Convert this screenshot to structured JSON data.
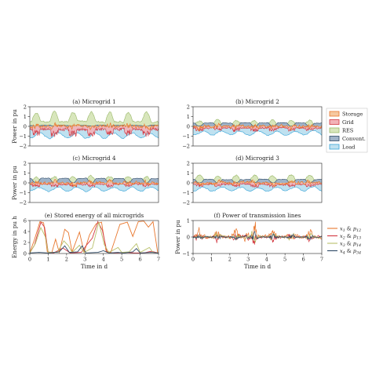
{
  "figure": {
    "background": "#ffffff",
    "colors": {
      "storage_fill": "#f6c8a0",
      "storage_line": "#e8772e",
      "grid_fill": "#f2b3b8",
      "grid_line": "#d2363f",
      "res_fill": "#d8e6bc",
      "res_line": "#9ab86a",
      "conv_fill": "#9fb3c8",
      "conv_line": "#2f4a66",
      "load_fill": "#bfe1f0",
      "load_line": "#39a5d8",
      "x1": "#e8772e",
      "x2": "#d2363f",
      "x3": "#b8c06a",
      "x4": "#2f4a66"
    }
  },
  "chart_data": [
    {
      "id": "a",
      "type": "area",
      "title": "(a) Microgrid 1",
      "ylabel": "Power in pu",
      "xlabel": "",
      "xlim": [
        0,
        7
      ],
      "ylim": [
        -2,
        2
      ],
      "yticks": [
        -2,
        -1,
        0,
        1,
        2
      ],
      "xticks": [],
      "seed": 11,
      "res_base": 1.3,
      "load_base": 1.1,
      "grid_mag": 0.55,
      "conv_mag": 0.1
    },
    {
      "id": "b",
      "type": "area",
      "title": "(b) Microgrid 2",
      "ylabel": "",
      "xlabel": "",
      "xlim": [
        0,
        7
      ],
      "ylim": [
        -2,
        2
      ],
      "yticks": [
        -2,
        -1,
        0,
        1,
        2
      ],
      "xticks": [],
      "seed": 23,
      "res_base": 0.55,
      "load_base": 0.8,
      "grid_mag": 0.25,
      "conv_mag": 0.35
    },
    {
      "id": "c",
      "type": "area",
      "title": "(c) Microgrid 4",
      "ylabel": "Power in pu",
      "xlabel": "",
      "xlim": [
        0,
        7
      ],
      "ylim": [
        -2,
        2
      ],
      "yticks": [
        -2,
        -1,
        0,
        1,
        2
      ],
      "xticks": [],
      "seed": 37,
      "res_base": 0.55,
      "load_base": 0.75,
      "grid_mag": 0.2,
      "conv_mag": 0.45
    },
    {
      "id": "d",
      "type": "area",
      "title": "(d) Microgrid 3",
      "ylabel": "",
      "xlabel": "",
      "xlim": [
        0,
        7
      ],
      "ylim": [
        -2,
        2
      ],
      "yticks": [
        -2,
        -1,
        0,
        1,
        2
      ],
      "xticks": [],
      "seed": 51,
      "res_base": 0.7,
      "load_base": 0.75,
      "grid_mag": 0.2,
      "conv_mag": 0.35
    },
    {
      "id": "e",
      "type": "line",
      "title": "(e) Stored energy of all microgrids",
      "ylabel": "Energy in pu h",
      "xlabel": "Time in d",
      "xlim": [
        0,
        7
      ],
      "ylim": [
        0,
        6
      ],
      "yticks": [
        0,
        2,
        4,
        6
      ],
      "xticks": [
        0,
        1,
        2,
        3,
        4,
        5,
        6,
        7
      ],
      "series": [
        {
          "name": "x1",
          "color": "#e8772e",
          "points": [
            [
              0,
              0.2
            ],
            [
              0.25,
              2.5
            ],
            [
              0.55,
              5.8
            ],
            [
              0.75,
              5.6
            ],
            [
              0.95,
              0.3
            ],
            [
              1.2,
              0.2
            ],
            [
              1.4,
              2.6
            ],
            [
              1.6,
              0.2
            ],
            [
              1.9,
              4.4
            ],
            [
              2.1,
              3.8
            ],
            [
              2.3,
              0.3
            ],
            [
              2.7,
              3.9
            ],
            [
              2.95,
              0.2
            ],
            [
              3.25,
              3.4
            ],
            [
              3.6,
              5.4
            ],
            [
              3.9,
              5.7
            ],
            [
              4.15,
              0.4
            ],
            [
              4.4,
              0.2
            ],
            [
              4.6,
              2.2
            ],
            [
              4.9,
              5.3
            ],
            [
              5.3,
              5.7
            ],
            [
              5.6,
              3.1
            ],
            [
              5.9,
              5.8
            ],
            [
              6.2,
              5.9
            ],
            [
              6.45,
              4.8
            ],
            [
              6.7,
              5.8
            ],
            [
              6.85,
              2.5
            ],
            [
              6.95,
              0.2
            ]
          ]
        },
        {
          "name": "x2",
          "color": "#d2363f",
          "points": [
            [
              0,
              0.1
            ],
            [
              0.25,
              1.5
            ],
            [
              0.6,
              5.7
            ],
            [
              0.8,
              4.8
            ],
            [
              1.0,
              0.2
            ],
            [
              1.3,
              0.1
            ],
            [
              1.8,
              1.0
            ],
            [
              2.2,
              0.1
            ],
            [
              2.8,
              0.2
            ],
            [
              3.1,
              1.6
            ],
            [
              3.4,
              2.8
            ],
            [
              3.7,
              5.8
            ],
            [
              3.95,
              4.2
            ],
            [
              4.2,
              0.2
            ],
            [
              4.6,
              0.1
            ],
            [
              5.2,
              0.2
            ],
            [
              5.7,
              0.1
            ],
            [
              6.2,
              0.1
            ],
            [
              6.6,
              0.4
            ],
            [
              7.0,
              0.1
            ]
          ]
        },
        {
          "name": "x3",
          "color": "#b8c06a",
          "points": [
            [
              0,
              0.1
            ],
            [
              0.3,
              1.8
            ],
            [
              0.6,
              4.7
            ],
            [
              0.85,
              3.0
            ],
            [
              1.0,
              0.2
            ],
            [
              1.5,
              0.2
            ],
            [
              1.85,
              2.3
            ],
            [
              2.1,
              1.4
            ],
            [
              2.3,
              0.2
            ],
            [
              2.7,
              1.5
            ],
            [
              2.95,
              0.2
            ],
            [
              3.4,
              1.0
            ],
            [
              3.75,
              5.7
            ],
            [
              4.05,
              1.6
            ],
            [
              4.3,
              0.2
            ],
            [
              4.8,
              1.1
            ],
            [
              5.0,
              0.2
            ],
            [
              5.4,
              0.3
            ],
            [
              5.8,
              1.8
            ],
            [
              6.0,
              0.2
            ],
            [
              6.5,
              1.1
            ],
            [
              6.7,
              0.2
            ],
            [
              7.0,
              0.1
            ]
          ]
        },
        {
          "name": "x4",
          "color": "#2f4a66",
          "points": [
            [
              0,
              0.1
            ],
            [
              0.5,
              0.2
            ],
            [
              1.0,
              0.1
            ],
            [
              1.6,
              0.3
            ],
            [
              1.9,
              1.4
            ],
            [
              2.15,
              0.2
            ],
            [
              2.6,
              0.3
            ],
            [
              2.85,
              1.4
            ],
            [
              3.05,
              0.1
            ],
            [
              3.7,
              0.2
            ],
            [
              4.0,
              0.5
            ],
            [
              4.3,
              0.1
            ],
            [
              4.8,
              0.2
            ],
            [
              5.1,
              0.1
            ],
            [
              5.6,
              0.3
            ],
            [
              5.8,
              0.9
            ],
            [
              6.0,
              0.1
            ],
            [
              6.6,
              0.2
            ],
            [
              7.0,
              0.1
            ]
          ]
        }
      ]
    },
    {
      "id": "f",
      "type": "line",
      "title": "(f) Power of transmission lines",
      "ylabel": "Power in pu",
      "xlabel": "Time in d",
      "xlim": [
        0,
        7
      ],
      "ylim": [
        -1,
        1
      ],
      "yticks": [
        -1,
        0,
        1
      ],
      "xticks": [
        0,
        1,
        2,
        3,
        4,
        5,
        6,
        7
      ],
      "series": [
        {
          "name": "p12",
          "color": "#e8772e",
          "seed": 3,
          "amp": 0.45,
          "bias": 0.25
        },
        {
          "name": "p13",
          "color": "#d2363f",
          "seed": 7,
          "amp": 0.35,
          "bias": -0.05
        },
        {
          "name": "p14",
          "color": "#b8c06a",
          "seed": 13,
          "amp": 0.25,
          "bias": 0.05
        },
        {
          "name": "p34",
          "color": "#2f4a66",
          "seed": 19,
          "amp": 0.2,
          "bias": 0.0
        }
      ]
    }
  ],
  "legend_power": [
    {
      "label": "Storage",
      "fill": "#f6c8a0",
      "line": "#e8772e"
    },
    {
      "label": "Grid",
      "fill": "#f2b3b8",
      "line": "#d2363f"
    },
    {
      "label": "RES",
      "fill": "#d8e6bc",
      "line": "#9ab86a"
    },
    {
      "label": "Convent.",
      "fill": "#9fb3c8",
      "line": "#2f4a66"
    },
    {
      "label": "Load",
      "fill": "#bfe1f0",
      "line": "#39a5d8"
    }
  ],
  "legend_lines": [
    {
      "x": "x",
      "xs": "1",
      "p": "p",
      "ps": "12",
      "color": "#e8772e"
    },
    {
      "x": "x",
      "xs": "2",
      "p": "p",
      "ps": "13",
      "color": "#d2363f"
    },
    {
      "x": "x",
      "xs": "3",
      "p": "p",
      "ps": "14",
      "color": "#b8c06a"
    },
    {
      "x": "x",
      "xs": "4",
      "p": "p",
      "ps": "34",
      "color": "#2f4a66"
    }
  ]
}
